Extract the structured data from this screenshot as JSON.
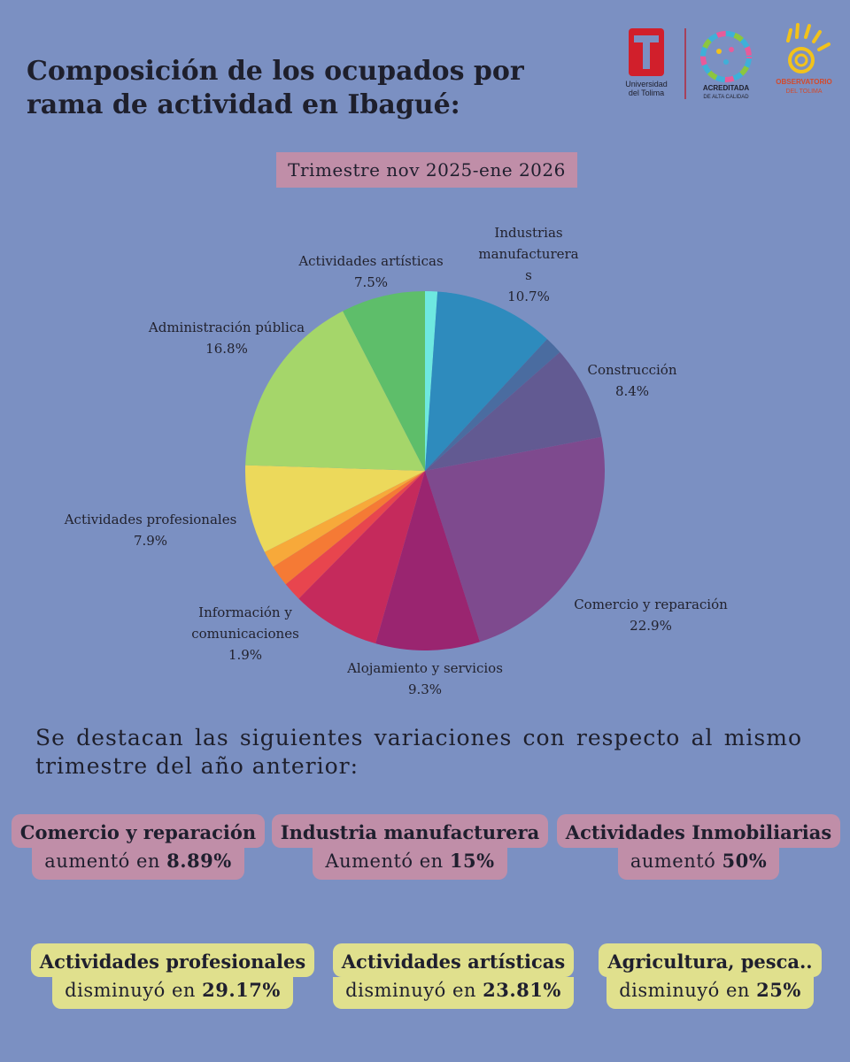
{
  "title": {
    "line1": "Composición de los ocupados  por",
    "line2": "rama de actividad en Ibagué:"
  },
  "period": "Trimestre nov 2025-ene 2026",
  "logos": {
    "ut_line1": "Universidad",
    "ut_line2": "del Tolima",
    "acc_line1": "ACREDITADA",
    "acc_line2": "DE ALTA CALIDAD",
    "obs_line1": "OBSERVATORIO",
    "obs_line2": "DEL TOLIMA",
    "colors": {
      "ut_red": "#d11f2b",
      "obs_yellow": "#f2c21b"
    }
  },
  "chart_data": {
    "type": "pie",
    "start": "top, clockwise",
    "slices": [
      {
        "label": "",
        "value": 1.1,
        "color": "#6ee8e0"
      },
      {
        "label": "Industrias manufactureras",
        "value": 10.7,
        "color": "#2e8bbd"
      },
      {
        "label": "",
        "value": 1.6,
        "color": "#4a6ca0"
      },
      {
        "label": "Construcción",
        "value": 8.4,
        "color": "#625a92"
      },
      {
        "label": "Comercio y reparación",
        "value": 22.9,
        "color": "#7e4a8e"
      },
      {
        "label": "Alojamiento y servicios",
        "value": 9.3,
        "color": "#9a2570"
      },
      {
        "label": "",
        "value": 7.9,
        "color": "#c52a5c"
      },
      {
        "label": "",
        "value": 1.7,
        "color": "#e8454e"
      },
      {
        "label": "Información y comunicaciones",
        "value": 1.9,
        "color": "#f57a35"
      },
      {
        "label": "",
        "value": 1.5,
        "color": "#f7a93a"
      },
      {
        "label": "Actividades profesionales",
        "value": 7.9,
        "color": "#ecd95b"
      },
      {
        "label": "Administración pública",
        "value": 16.8,
        "color": "#a5d66a"
      },
      {
        "label": "Actividades artísticas",
        "value": 7.5,
        "color": "#5ebe6a"
      }
    ],
    "labels": [
      {
        "lines": [
          "Actividades artísticas",
          "7.5%"
        ]
      },
      {
        "lines": [
          "Industrias",
          "manufacturera",
          "s",
          "10.7%"
        ]
      },
      {
        "lines": [
          "Construcción",
          "8.4%"
        ]
      },
      {
        "lines": [
          "Administración pública",
          "16.8%"
        ]
      },
      {
        "lines": [
          "Actividades profesionales",
          "7.9%"
        ]
      },
      {
        "lines": [
          "Información y",
          "comunicaciones",
          "1.9%"
        ]
      },
      {
        "lines": [
          "Alojamiento y servicios",
          "9.3%"
        ]
      },
      {
        "lines": [
          "Comercio y reparación",
          "22.9%"
        ]
      }
    ]
  },
  "intro": "Se destacan las siguientes variaciones con respecto al mismo trimestre del año anterior:",
  "highlights": [
    {
      "title": "Comercio y reparación",
      "text": "aumentó en ",
      "value": "8.89%"
    },
    {
      "title": "Industria manufacturera",
      "text": "Aumentó en ",
      "value": "15%"
    },
    {
      "title": "Actividades Inmobiliarias",
      "text": "aumentó ",
      "value": "50%"
    },
    {
      "title": "Actividades profesionales",
      "text": "disminuyó en ",
      "value": "29.17%"
    },
    {
      "title": "Actividades artísticas",
      "text": "disminuyó en ",
      "value": "23.81%"
    },
    {
      "title": "Agricultura, pesca..",
      "text": "disminuyó en ",
      "value": "25%"
    }
  ]
}
